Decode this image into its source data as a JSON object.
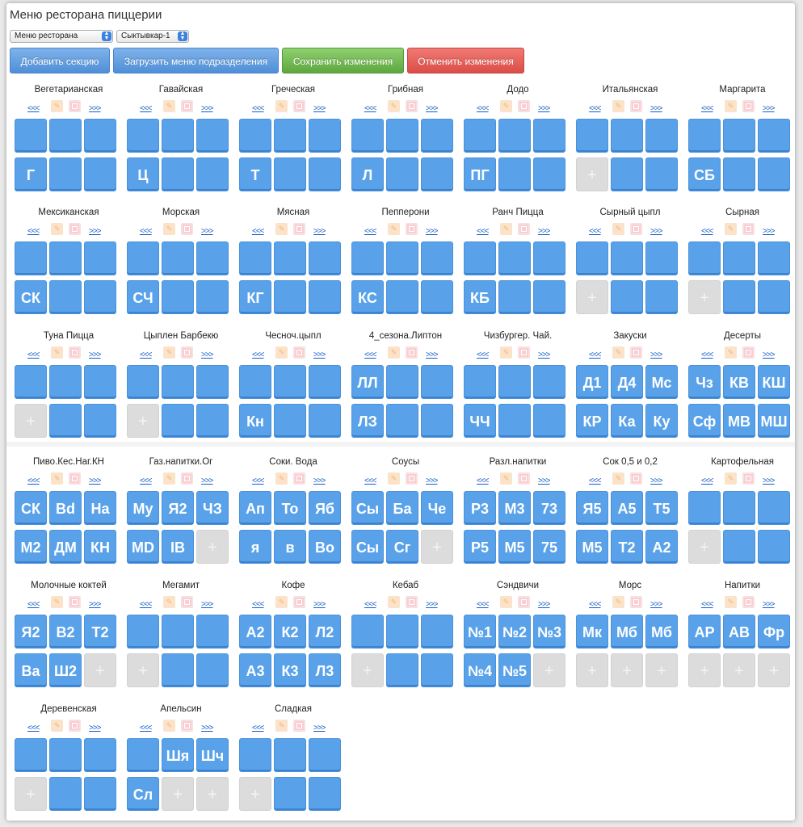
{
  "header": {
    "title": "Меню ресторана пиццерии",
    "menu_select": "Меню ресторана",
    "city_select": "Сыктывкар-1"
  },
  "toolbar": {
    "add_section": "Добавить секцию",
    "load_menu": "Загрузить меню подразделения",
    "save": "Сохранить изменения",
    "cancel": "Отменить изменения"
  },
  "nav": {
    "prev": "<<<",
    "next": ">>>",
    "add": "+"
  },
  "colors": {
    "tile": "#59a2ea",
    "empty_tile": "#dcdcdc",
    "save": "#5ea83f",
    "cancel": "#dc4d47",
    "primary": "#4f8fd8"
  },
  "icons": {
    "edit": "pencil-icon",
    "delete": "delete-icon"
  },
  "sections": [
    {
      "name": "Вегетарианская",
      "cells": [
        "",
        "",
        "",
        "Г",
        "",
        ""
      ]
    },
    {
      "name": "Гавайская",
      "cells": [
        "",
        "",
        "",
        "Ц",
        "",
        ""
      ]
    },
    {
      "name": "Греческая",
      "cells": [
        "",
        "",
        "",
        "Т",
        "",
        ""
      ]
    },
    {
      "name": "Грибная",
      "cells": [
        "",
        "",
        "",
        "Л",
        "",
        ""
      ]
    },
    {
      "name": "Додо",
      "cells": [
        "",
        "",
        "",
        "ПГ",
        "",
        ""
      ]
    },
    {
      "name": "Итальянская",
      "cells": [
        "",
        "",
        "",
        "+",
        "",
        ""
      ]
    },
    {
      "name": "Маргарита",
      "cells": [
        "",
        "",
        "",
        "СБ",
        "",
        ""
      ]
    },
    {
      "name": "Мексиканская",
      "cells": [
        "",
        "",
        "",
        "СК",
        "",
        ""
      ]
    },
    {
      "name": "Морская",
      "cells": [
        "",
        "",
        "",
        "СЧ",
        "",
        ""
      ]
    },
    {
      "name": "Мясная",
      "cells": [
        "",
        "",
        "",
        "КГ",
        "",
        ""
      ]
    },
    {
      "name": "Пепперони",
      "cells": [
        "",
        "",
        "",
        "КС",
        "",
        ""
      ]
    },
    {
      "name": "Ранч Пицца",
      "cells": [
        "",
        "",
        "",
        "КБ",
        "",
        ""
      ]
    },
    {
      "name": "Сырный цыпл",
      "cells": [
        "",
        "",
        "",
        "+",
        "",
        ""
      ]
    },
    {
      "name": "Сырная",
      "cells": [
        "",
        "",
        "",
        "+",
        "",
        ""
      ]
    },
    {
      "name": "Туна Пицца",
      "cells": [
        "",
        "",
        "",
        "+",
        "",
        ""
      ]
    },
    {
      "name": "Цыплен Барбекю",
      "cells": [
        "",
        "",
        "",
        "+",
        "",
        ""
      ]
    },
    {
      "name": "Чесноч.цыпл",
      "cells": [
        "",
        "",
        "",
        "Кн",
        "",
        ""
      ]
    },
    {
      "name": "4_сезона.Липтон",
      "cells": [
        "ЛЛ",
        "",
        "",
        "ЛЗ",
        "",
        ""
      ]
    },
    {
      "name": "Чизбургер. Чай.",
      "cells": [
        "",
        "",
        "",
        "ЧЧ",
        "",
        ""
      ]
    },
    {
      "name": "Закуски",
      "cells": [
        "Д1",
        "Д4",
        "Мс",
        "КР",
        "Ка",
        "Ку"
      ]
    },
    {
      "name": "Десерты",
      "cells": [
        "Чз",
        "КВ",
        "КШ",
        "Сф",
        "МВ",
        "МШ"
      ]
    },
    {
      "name": "Пиво.Кес.Наг.КН",
      "cells": [
        "СК",
        "Bd",
        "На",
        "М2",
        "ДМ",
        "КН"
      ]
    },
    {
      "name": "Газ.напитки.Ог",
      "cells": [
        "Му",
        "Я2",
        "ЧЗ",
        "MD",
        "IB",
        "+"
      ]
    },
    {
      "name": "Соки. Вода",
      "cells": [
        "Ап",
        "То",
        "Яб",
        "я",
        "в",
        "Во"
      ]
    },
    {
      "name": "Соусы",
      "cells": [
        "Сы",
        "Ба",
        "Че",
        "Сы",
        "Сг",
        "+"
      ]
    },
    {
      "name": "Разл.напитки",
      "cells": [
        "Р3",
        "М3",
        "73",
        "Р5",
        "М5",
        "75"
      ]
    },
    {
      "name": "Сок 0,5 и 0,2",
      "cells": [
        "Я5",
        "А5",
        "Т5",
        "М5",
        "Т2",
        "А2"
      ]
    },
    {
      "name": "Картофельная",
      "cells": [
        "",
        "",
        "",
        "+",
        "",
        ""
      ]
    },
    {
      "name": "Молочные коктей",
      "cells": [
        "Я2",
        "В2",
        "Т2",
        "Ва",
        "Ш2",
        "+"
      ]
    },
    {
      "name": "Мегамит",
      "cells": [
        "",
        "",
        "",
        "+",
        "",
        ""
      ]
    },
    {
      "name": "Кофе",
      "cells": [
        "А2",
        "К2",
        "Л2",
        "А3",
        "К3",
        "Л3"
      ]
    },
    {
      "name": "Кебаб",
      "cells": [
        "",
        "",
        "",
        "+",
        "",
        ""
      ]
    },
    {
      "name": "Сэндвичи",
      "cells": [
        "№1",
        "№2",
        "№3",
        "№4",
        "№5",
        "+"
      ]
    },
    {
      "name": "Морс",
      "cells": [
        "Мк",
        "Мб",
        "Мб",
        "+",
        "+",
        "+"
      ]
    },
    {
      "name": "Напитки",
      "cells": [
        "АР",
        "АВ",
        "Фр",
        "+",
        "+",
        "+"
      ]
    },
    {
      "name": "Деревенская",
      "cells": [
        "",
        "",
        "",
        "+",
        "",
        ""
      ]
    },
    {
      "name": "Апельсин",
      "cells": [
        "",
        "Шя",
        "Шч",
        "Сл",
        "+",
        "+"
      ]
    },
    {
      "name": "Сладкая",
      "cells": [
        "",
        "",
        "",
        "+",
        "",
        ""
      ]
    }
  ]
}
